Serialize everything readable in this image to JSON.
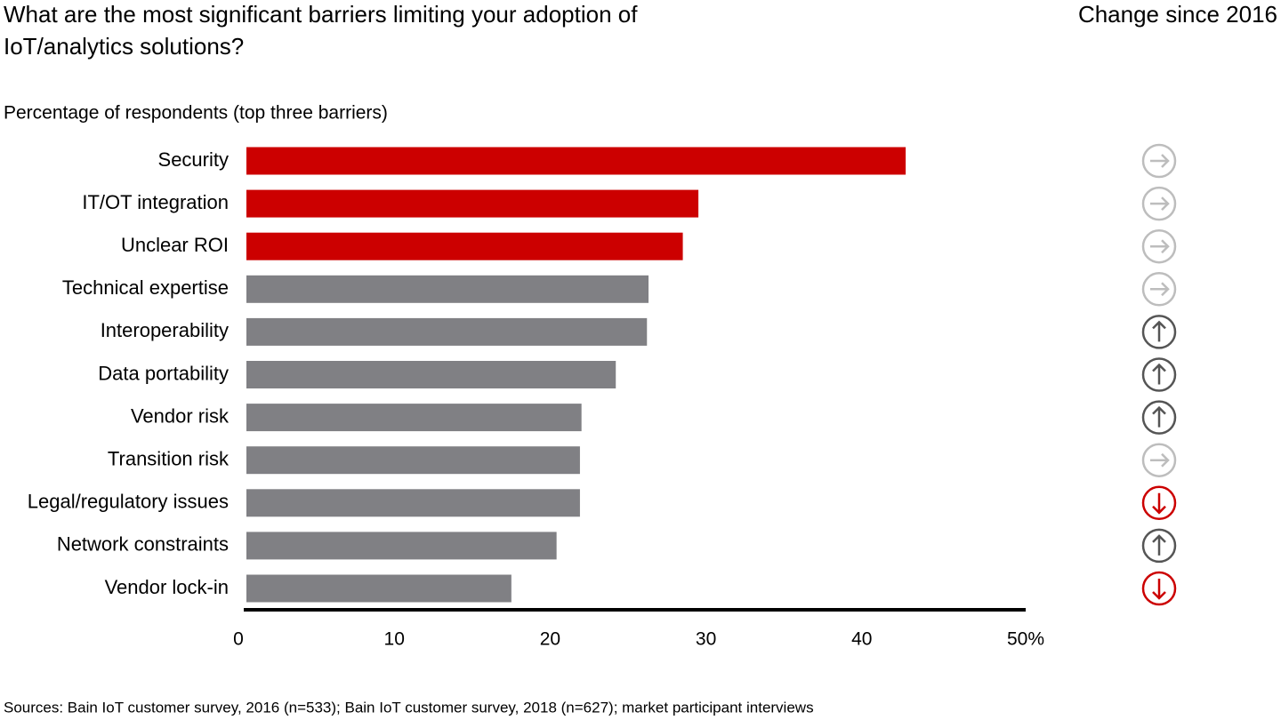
{
  "chart_data": {
    "type": "bar",
    "title": "What are the most significant barriers limiting your adoption of IoT/analytics solutions?",
    "subtitle": "Percentage of respondents (top three barriers)",
    "change_header": "Change since 2016",
    "source": "Sources: Bain IoT customer survey, 2016 (n=533); Bain IoT customer survey, 2018 (n=627); market participant interviews",
    "categories": [
      "Security",
      "IT/OT integration",
      "Unclear ROI",
      "Technical expertise",
      "Interoperability",
      "Data portability",
      "Vendor risk",
      "Transition risk",
      "Legal/regulatory issues",
      "Network constraints",
      "Vendor lock-in"
    ],
    "values": [
      42.3,
      29.0,
      28.0,
      25.8,
      25.7,
      23.7,
      21.5,
      21.4,
      21.4,
      19.9,
      17.0
    ],
    "colors": [
      "#cc0000",
      "#cc0000",
      "#cc0000",
      "#808084",
      "#808084",
      "#808084",
      "#808084",
      "#808084",
      "#808084",
      "#808084",
      "#808084"
    ],
    "change": [
      "flat",
      "flat",
      "flat",
      "flat",
      "up",
      "up",
      "up",
      "flat",
      "down",
      "up",
      "down"
    ],
    "change_colors": {
      "flat": "#bdbdbd",
      "up": "#555555",
      "down": "#cc0000"
    },
    "xlim": [
      0,
      50
    ],
    "xticks": [
      0,
      10,
      20,
      30,
      40,
      {
        "value": 50,
        "label": "50%"
      }
    ]
  }
}
